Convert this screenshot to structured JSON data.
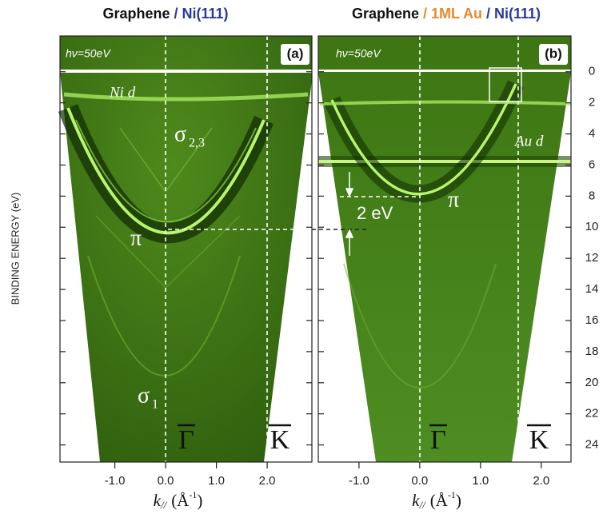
{
  "chart_data": [
    {
      "type": "image",
      "title": [
        {
          "text": "Graphene",
          "color": "#111111"
        },
        {
          "text": "/ Ni(111)",
          "color": "#2a3a9c"
        }
      ],
      "ylabel": "BINDING ENERGY (eV)",
      "xlabel": {
        "k": "k",
        "sub": "//",
        "unit": "(Å",
        "sup": "-1",
        "close": ")"
      },
      "xlim": [
        -2.08,
        2.88
      ],
      "ylim": [
        -2.3,
        25.1
      ],
      "xticks": [
        {
          "value": -1,
          "label": "-1.0"
        },
        {
          "value": 0,
          "label": "0.0"
        },
        {
          "value": 1,
          "label": "1.0"
        },
        {
          "value": 2,
          "label": "2.0"
        }
      ],
      "annotations": [
        "hν=50eV",
        "(a)",
        "Ni d",
        "σ",
        "2,3",
        "π",
        "σ",
        "1",
        "Γ",
        "K"
      ]
    },
    {
      "type": "image",
      "title": [
        {
          "text": "Graphene",
          "color": "#111111"
        },
        {
          "text": "/ 1ML Au",
          "color": "#e98a2a"
        },
        {
          "text": "/ Ni(111)",
          "color": "#2a3a9c"
        }
      ],
      "xlabel": {
        "k": "k",
        "sub": "//",
        "unit": "(Å",
        "sup": "-1",
        "close": ")"
      },
      "xlim": [
        -1.67,
        2.49
      ],
      "ylim": [
        -2.3,
        25.1
      ],
      "xticks": [
        {
          "value": -1,
          "label": "-1.0"
        },
        {
          "value": 0,
          "label": "0.0"
        },
        {
          "value": 1,
          "label": "1.0"
        },
        {
          "value": 2,
          "label": "2.0"
        }
      ],
      "yticks": [
        0,
        2,
        4,
        6,
        8,
        10,
        12,
        14,
        16,
        18,
        20,
        22,
        24
      ],
      "annotations": [
        "hν=50eV",
        "(b)",
        "Au d",
        "π",
        "2 eV",
        "Γ",
        "K"
      ]
    }
  ]
}
